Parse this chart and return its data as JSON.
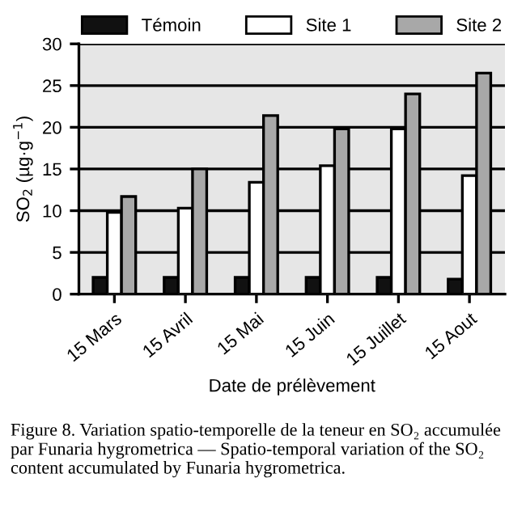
{
  "chart_data": {
    "type": "bar",
    "categories": [
      "15 Mars",
      "15 Avril",
      "15 Mai",
      "15 Juin",
      "15 Juillet",
      "15 Aout"
    ],
    "series": [
      {
        "name": "Témoin",
        "color": "#111111",
        "values": [
          2,
          2,
          2,
          2,
          2,
          1.8
        ]
      },
      {
        "name": "Site 1",
        "color": "#ffffff",
        "values": [
          9.8,
          10.3,
          13.4,
          15.4,
          19.8,
          14.2
        ]
      },
      {
        "name": "Site 2",
        "color": "#a8a8a8",
        "values": [
          11.7,
          15,
          21.4,
          19.8,
          24,
          26.5
        ]
      }
    ],
    "ylim": [
      0,
      30
    ],
    "yticks": [
      0,
      5,
      10,
      15,
      20,
      25,
      30
    ],
    "grid": "y",
    "legend": "top",
    "ylabel": "SO$_{2}$ (µg·g$^{−1}$)",
    "xlabel": "Date de prélèvement",
    "annotations": [
      "Figure 8. Variation spatio-temporelle de la teneur en SO₂ accumulée par Funaria hygrometrica — Spatio-temporal variation of the SO₂ content accumulated by Funaria hygrometrica."
    ]
  }
}
